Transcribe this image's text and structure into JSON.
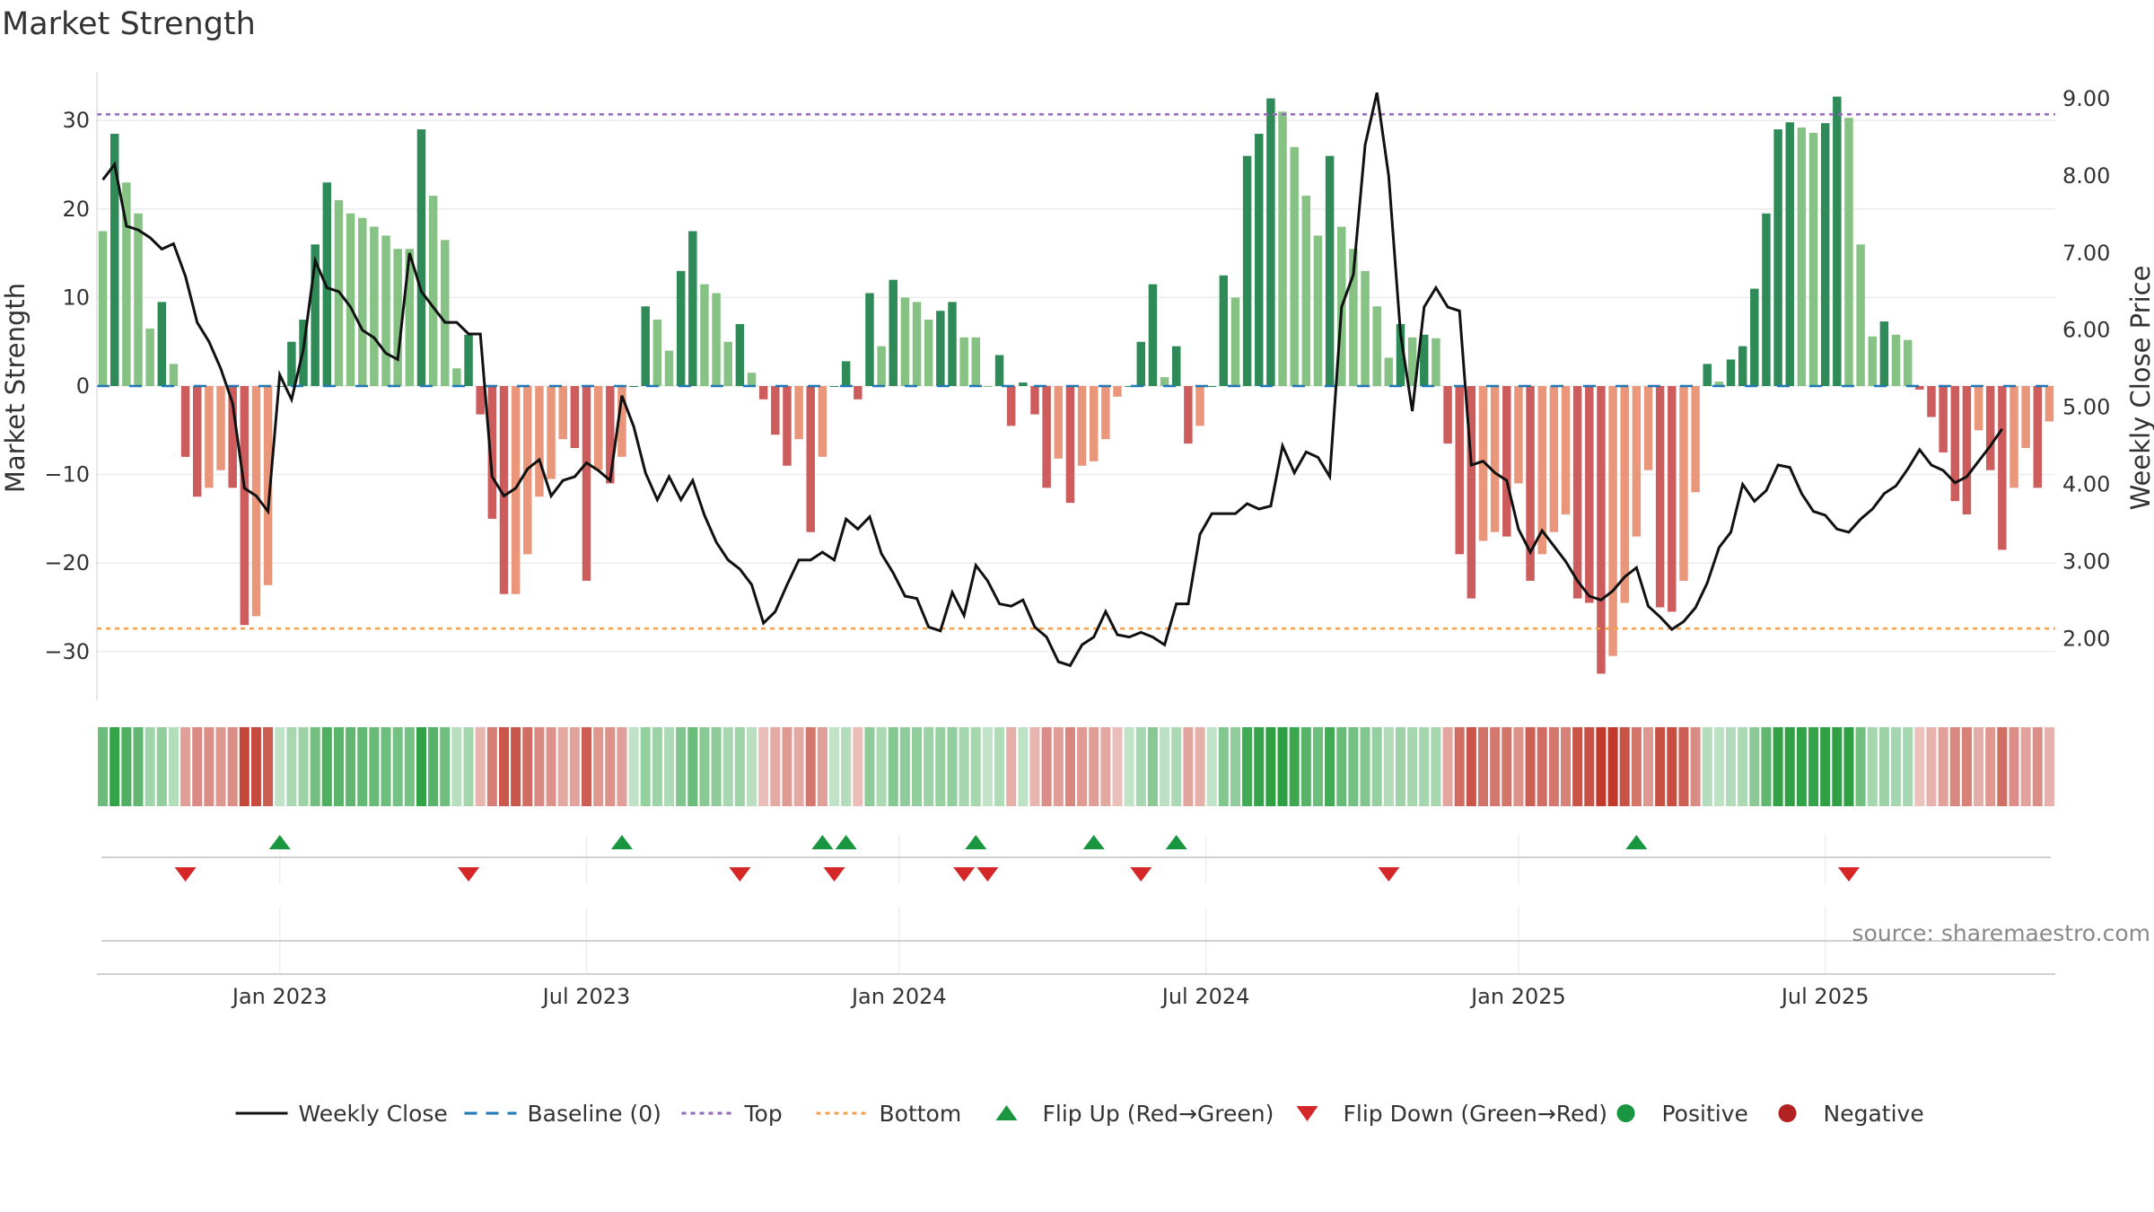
{
  "chart_data": {
    "type": "bar",
    "title": "Market Strength",
    "ylabel_left": "Market Strength",
    "ylabel_right": "Weekly Close Price",
    "left_ylim": [
      -35.5,
      35.5
    ],
    "left_yticks": [
      -30,
      -20,
      -10,
      0,
      10,
      20,
      30
    ],
    "left_ytick_labels": [
      "−30",
      "−20",
      "−10",
      "0",
      "10",
      "20",
      "30"
    ],
    "right_ylim": [
      1.2,
      9.35
    ],
    "right_yticks": [
      2,
      3,
      4,
      5,
      6,
      7,
      8,
      9
    ],
    "right_ytick_labels": [
      "2.00",
      "3.00",
      "4.00",
      "5.00",
      "6.00",
      "7.00",
      "8.00",
      "9.00"
    ],
    "top_threshold": 30.7,
    "bottom_threshold": -27.4,
    "x_ticks": [
      {
        "label": "Jan 2023",
        "week": 15
      },
      {
        "label": "Jul 2023",
        "week": 41
      },
      {
        "label": "Jan 2024",
        "week": 67.5
      },
      {
        "label": "Jul 2024",
        "week": 93.5
      },
      {
        "label": "Jan 2025",
        "week": 120
      },
      {
        "label": "Jul 2025",
        "week": 146
      }
    ],
    "series": [
      {
        "name": "Market Strength",
        "type": "bar",
        "values": [
          17.5,
          28.5,
          23,
          19.5,
          6.5,
          9.5,
          2.5,
          -8,
          -12.5,
          -11.5,
          -9.5,
          -11.5,
          -27,
          -26,
          -22.5,
          0,
          5,
          7.5,
          16,
          23,
          21,
          19.5,
          19,
          18,
          17,
          15.5,
          15.5,
          29,
          21.5,
          16.5,
          2,
          5.8,
          -3.2,
          -15,
          -23.5,
          -23.5,
          -19,
          -12.5,
          -10.5,
          -6,
          -7,
          -22,
          -9.5,
          -11,
          -8,
          0,
          9,
          7.5,
          4,
          13,
          17.5,
          11.5,
          10.5,
          5,
          7,
          1.5,
          -1.5,
          -5.5,
          -9,
          -6,
          -16.5,
          -8,
          0,
          2.8,
          -1.5,
          10.5,
          4.5,
          12,
          10,
          9.5,
          7.5,
          8.5,
          9.5,
          5.5,
          5.5,
          0,
          3.5,
          -4.5,
          0.4,
          -3.2,
          -11.5,
          -8.2,
          -13.2,
          -9,
          -8.5,
          -6,
          -1.2,
          0,
          5,
          11.5,
          1,
          4.5,
          -6.5,
          -4.5,
          0,
          12.5,
          10,
          26,
          28.5,
          32.5,
          31,
          27,
          21.5,
          17,
          26,
          18,
          15.5,
          13,
          9,
          3.2,
          7,
          5.5,
          5.8,
          5.4,
          -6.5,
          -19,
          -24,
          -17.5,
          -16.5,
          -17,
          -11,
          -22,
          -19,
          -16.5,
          -14.5,
          -24,
          -24.5,
          -32.5,
          -30.5,
          -24.5,
          -17,
          -9.5,
          -25,
          -25.5,
          -22,
          -12,
          2.5,
          0.5,
          3,
          4.5,
          11,
          19.5,
          29,
          29.8,
          29.2,
          28.6,
          29.7,
          32.7,
          30.3,
          16,
          5.6,
          7.3,
          5.8,
          5.2,
          -0.4,
          -3.5,
          -7.5,
          -13,
          -14.5,
          -5,
          -9.5,
          -18.5,
          -11.5,
          -7,
          -11.5,
          -4
        ]
      },
      {
        "name": "Weekly Close",
        "type": "line",
        "axis": "right",
        "values": [
          7.95,
          8.15,
          7.35,
          7.3,
          7.2,
          7.05,
          7.12,
          6.7,
          6.1,
          5.85,
          5.5,
          5.05,
          3.95,
          3.85,
          3.65,
          5.42,
          5.1,
          5.75,
          6.9,
          6.55,
          6.5,
          6.3,
          6,
          5.9,
          5.7,
          5.62,
          7,
          6.5,
          6.3,
          6.1,
          6.1,
          5.95,
          5.95,
          4.1,
          3.85,
          3.95,
          4.2,
          4.32,
          3.85,
          4.05,
          4.1,
          4.28,
          4.18,
          4.05,
          5.15,
          4.75,
          4.15,
          3.8,
          4.1,
          3.8,
          4.05,
          3.6,
          3.25,
          3.02,
          2.9,
          2.7,
          2.2,
          2.35,
          2.7,
          3.02,
          3.02,
          3.12,
          3.02,
          3.55,
          3.42,
          3.58,
          3.1,
          2.85,
          2.55,
          2.52,
          2.15,
          2.1,
          2.6,
          2.3,
          2.95,
          2.75,
          2.45,
          2.42,
          2.5,
          2.15,
          2.02,
          1.7,
          1.65,
          1.92,
          2.02,
          2.35,
          2.05,
          2.02,
          2.08,
          2.02,
          1.92,
          2.45,
          2.45,
          3.35,
          3.62,
          3.62,
          3.62,
          3.75,
          3.68,
          3.72,
          4.5,
          4.15,
          4.42,
          4.35,
          4.1,
          6.3,
          6.72,
          8.4,
          9.08,
          8.0,
          5.95,
          4.95,
          6.3,
          6.55,
          6.3,
          6.25,
          4.25,
          4.3,
          4.15,
          4.05,
          3.42,
          3.12,
          3.4,
          3.2,
          3.0,
          2.75,
          2.55,
          2.5,
          2.62,
          2.8,
          2.92,
          2.42,
          2.28,
          2.12,
          2.22,
          2.4,
          2.72,
          3.18,
          3.38,
          4.0,
          3.78,
          3.92,
          4.25,
          4.22,
          3.88,
          3.65,
          3.6,
          3.42,
          3.38,
          3.55,
          3.68,
          3.88,
          3.98,
          4.2,
          4.45,
          4.25,
          4.18,
          4.02,
          4.1,
          4.3,
          4.5,
          4.72
        ]
      },
      {
        "name": "Baseline (0)",
        "type": "line",
        "value": 0
      },
      {
        "name": "Top",
        "type": "line",
        "value": 30.7
      },
      {
        "name": "Bottom",
        "type": "line",
        "value": -27.4
      }
    ],
    "flip_up_weeks": [
      15,
      44,
      61,
      63,
      74,
      84,
      91,
      130
    ],
    "flip_down_weeks": [
      7,
      31,
      54,
      62,
      73,
      75,
      88,
      109,
      148
    ],
    "legend": [
      "Weekly Close",
      "Baseline (0)",
      "Top",
      "Bottom",
      "Flip Up (Red→Green)",
      "Flip Down (Green→Red)",
      "Positive",
      "Negative"
    ],
    "legend_position": "bottom-center",
    "source": "source: sharemaestro.com"
  },
  "colors": {
    "pos_dark": "#2e8b57",
    "pos_light": "#86c284",
    "neg_dark": "#cd5c5c",
    "neg_light": "#e9967a",
    "line": "#111111",
    "baseline": "#1f77b4",
    "top": "#9467bd",
    "bottom": "#f0a050",
    "flip_up": "#1a9641",
    "flip_down": "#d62728",
    "positive_marker": "#1a9641",
    "negative_marker": "#b22222"
  }
}
